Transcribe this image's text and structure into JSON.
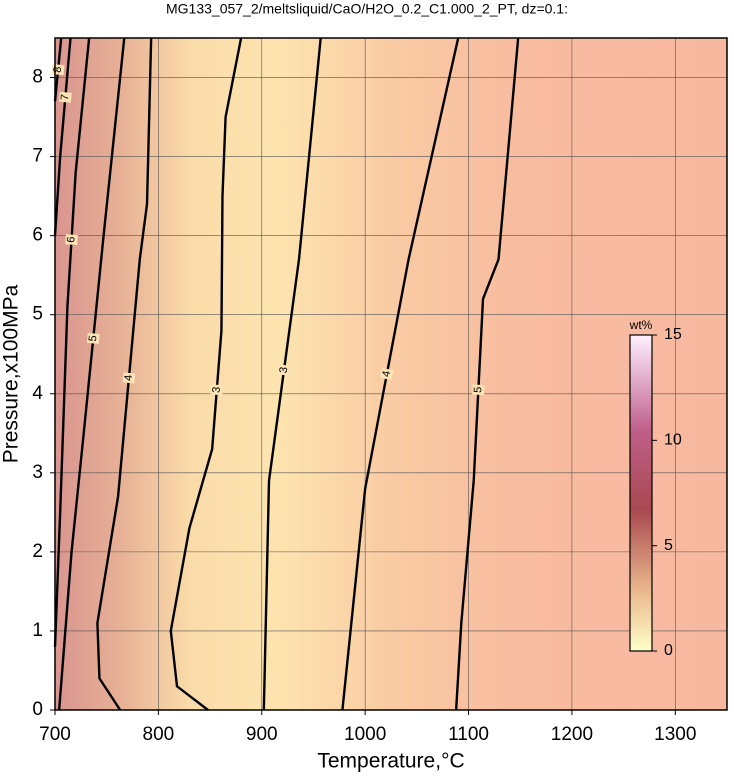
{
  "chart_data": {
    "type": "contour",
    "title": "MG133_057_2/meltsliquid/CaO/H2O_0.2_C1.000_2_PT, dz=0.1:",
    "x_label": "Temperature,°C",
    "y_label": "Pressure,x100MPa",
    "xlim": [
      700,
      1350
    ],
    "ylim": [
      0,
      8.5
    ],
    "xticks": [
      700,
      800,
      900,
      1000,
      1100,
      1200,
      1300
    ],
    "yticks": [
      0,
      1,
      2,
      3,
      4,
      5,
      6,
      7,
      8
    ],
    "grid": true,
    "contours": [
      {
        "level": 8,
        "x": [
          700,
          706
        ],
        "y": [
          7.7,
          8.5
        ]
      },
      {
        "level": 7,
        "x": [
          700,
          705,
          715
        ],
        "y": [
          6,
          7,
          8.5
        ]
      },
      {
        "level": 6,
        "x": [
          700,
          705,
          712,
          720,
          733
        ],
        "y": [
          0.8,
          2.5,
          5.1,
          6.8,
          8.5
        ]
      },
      {
        "level": 5,
        "x": [
          704,
          716,
          727,
          747,
          767
        ],
        "y": [
          0,
          2,
          3.4,
          6,
          8.5
        ]
      },
      {
        "level": 4,
        "x": [
          763,
          743,
          741,
          761,
          782,
          789,
          793
        ],
        "y": [
          0,
          0.4,
          1.1,
          2.7,
          5.7,
          6.4,
          8.5
        ]
      },
      {
        "level": 3,
        "x": [
          848,
          818,
          812,
          830,
          852,
          861,
          862,
          865,
          880
        ],
        "y": [
          0,
          0.3,
          1,
          2.3,
          3.3,
          4.8,
          6.5,
          7.5,
          8.5
        ]
      },
      {
        "level": 3,
        "x": [
          902,
          907,
          936,
          957
        ],
        "y": [
          0,
          2.9,
          5.7,
          8.5
        ]
      },
      {
        "level": 4,
        "x": [
          978,
          1000,
          1042,
          1090
        ],
        "y": [
          0,
          2.8,
          5.7,
          8.5
        ]
      },
      {
        "level": 5,
        "x": [
          1088,
          1093,
          1105,
          1114,
          1129,
          1148
        ],
        "y": [
          0,
          1.1,
          2.9,
          5.2,
          5.7,
          8.5
        ]
      }
    ],
    "colorbar": {
      "label": "wt%",
      "lim": [
        0,
        15
      ],
      "ticks": [
        0,
        5,
        10,
        15
      ]
    }
  }
}
